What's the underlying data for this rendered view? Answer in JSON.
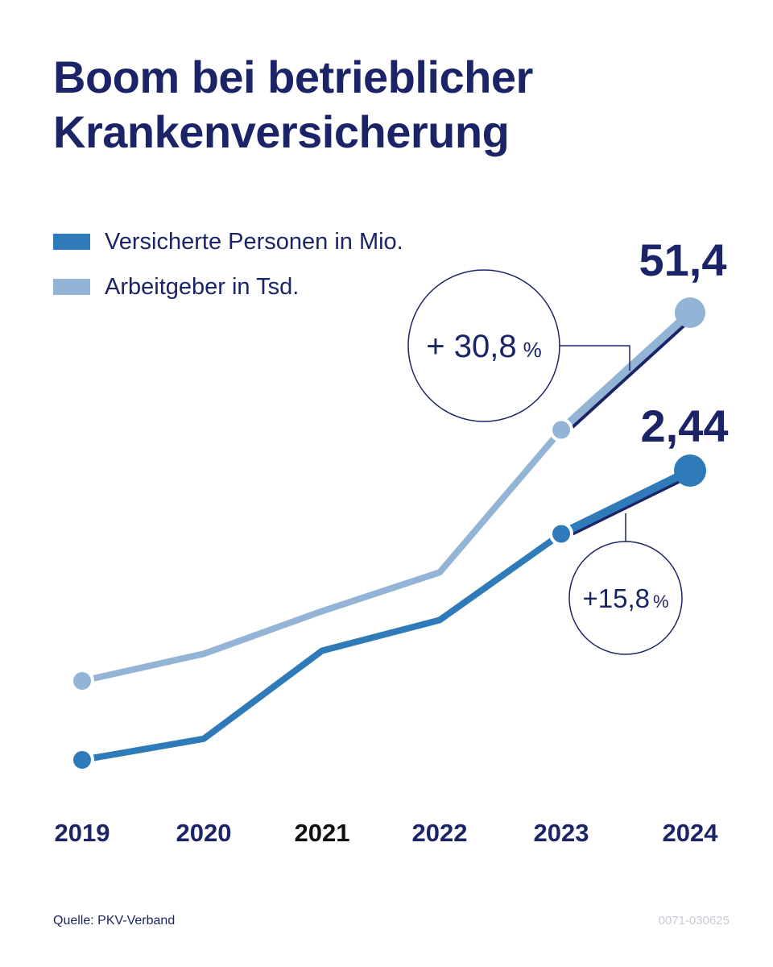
{
  "title_lines": [
    "Boom bei betrieblicher",
    "Krankenversicherung"
  ],
  "legend": [
    {
      "label": "Versicherte Personen in Mio.",
      "color": "#2f7ab8"
    },
    {
      "label": "Arbeitgeber in Tsd.",
      "color": "#94b4d6"
    }
  ],
  "colors": {
    "dark_navy": "#1b2466",
    "series_dark": "#2f7ab8",
    "series_light": "#94b4d6",
    "highlight_year": "#111111"
  },
  "chart_data": {
    "type": "line",
    "categories": [
      "2019",
      "2020",
      "2021",
      "2022",
      "2023",
      "2024"
    ],
    "highlighted_category": "2021",
    "series": [
      {
        "name": "Arbeitgeber in Tsd.",
        "values": [
          13.4,
          16.2,
          20.6,
          24.6,
          39.3,
          51.4
        ],
        "end_label": "51,4"
      },
      {
        "name": "Versicherte Personen in Mio.",
        "values": [
          0.93,
          1.04,
          1.5,
          1.66,
          2.11,
          2.44
        ],
        "end_label": "2,44"
      }
    ],
    "annotations": [
      {
        "series": "Arbeitgeber in Tsd.",
        "from": "2023",
        "to": "2024",
        "value": "+ 30,8",
        "unit": "%"
      },
      {
        "series": "Versicherte Personen in Mio.",
        "from": "2023",
        "to": "2024",
        "value": "+15,8",
        "unit": "%"
      }
    ]
  },
  "footer": {
    "source": "Quelle: PKV-Verband",
    "code": "0071-030625"
  }
}
